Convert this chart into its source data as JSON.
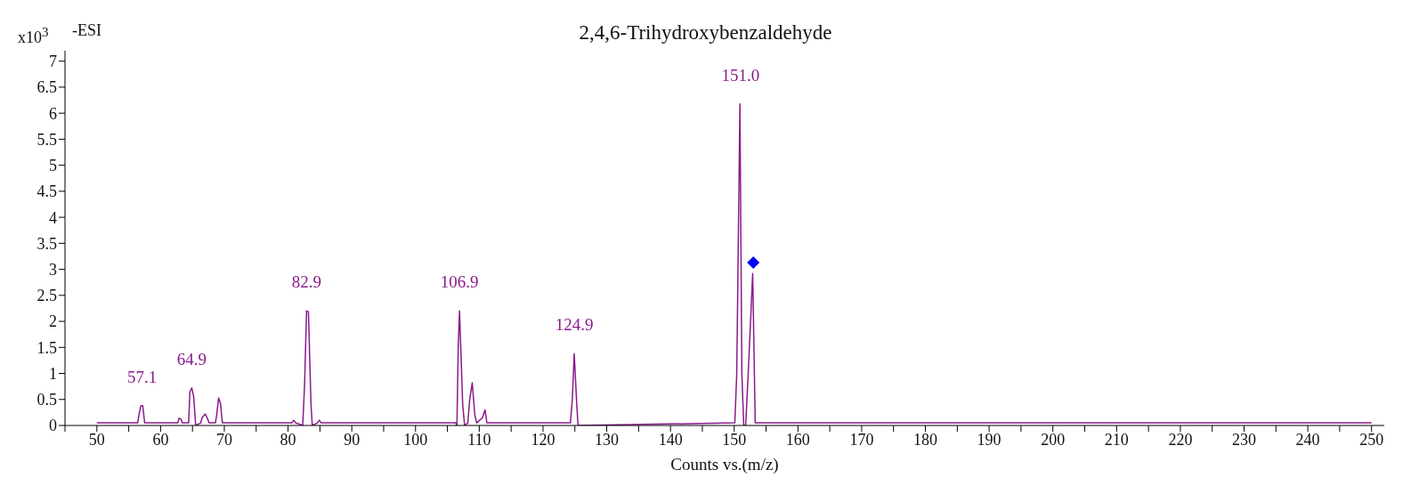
{
  "chart_data": {
    "type": "line",
    "title": "2,4,6-Trihydroxybenzaldehyde",
    "xlabel": "Counts vs.(m/z)",
    "ylabel": "x10$^{3}$",
    "annotations": [
      "-ESI",
      {
        "text": "57.1",
        "x": 57.1,
        "y": 0.38
      },
      {
        "text": "64.9",
        "x": 64.9,
        "y": 0.72
      },
      {
        "text": "82.9",
        "x": 82.9,
        "y": 2.2
      },
      {
        "text": "106.9",
        "x": 106.9,
        "y": 2.2
      },
      {
        "text": "124.9",
        "x": 124.9,
        "y": 1.38
      },
      {
        "text": "151.0",
        "x": 151.0,
        "y": 6.18
      }
    ],
    "series": [
      {
        "color": "#8b1a8b",
        "x": [
          50,
          56.4,
          56.6,
          56.9,
          57.2,
          57.5,
          62.7,
          62.9,
          63.2,
          63.4,
          64.4,
          64.6,
          64.9,
          65.2,
          65.5,
          66.3,
          66.5,
          67.0,
          67.3,
          67.6,
          68.6,
          68.8,
          69.1,
          69.4,
          69.7,
          80.6,
          80.9,
          81.2,
          82.3,
          82.6,
          82.9,
          83.2,
          83.6,
          83.8,
          84.6,
          84.9,
          85.2,
          106.3,
          106.5,
          106.7,
          106.9,
          107.4,
          107.7,
          108.2,
          108.5,
          108.9,
          109.3,
          109.6,
          110.5,
          110.9,
          111.2,
          124.3,
          124.6,
          124.9,
          125.3,
          125.5,
          150.1,
          150.4,
          150.9,
          151.2,
          151.5,
          151.8,
          152.2,
          152.9,
          153.3,
          250
        ],
        "values": [
          0.05,
          0.05,
          0.2,
          0.38,
          0.38,
          0.05,
          0.05,
          0.14,
          0.12,
          0.05,
          0.05,
          0.65,
          0.72,
          0.55,
          0.0,
          0.05,
          0.15,
          0.22,
          0.15,
          0.05,
          0.05,
          0.2,
          0.53,
          0.42,
          0.05,
          0.05,
          0.1,
          0.05,
          0.0,
          0.8,
          2.2,
          2.18,
          0.4,
          0.0,
          0.05,
          0.1,
          0.05,
          0.05,
          0.0,
          1.5,
          2.2,
          0.4,
          0.0,
          0.05,
          0.5,
          0.82,
          0.2,
          0.05,
          0.15,
          0.3,
          0.05,
          0.05,
          0.5,
          1.38,
          0.4,
          0.0,
          0.05,
          1.0,
          6.18,
          1.0,
          0.0,
          0.0,
          1.0,
          2.92,
          0.05,
          0.05
        ]
      },
      {
        "type": "scatter",
        "color": "#0000ff",
        "marker": "diamond",
        "x": [
          153.0
        ],
        "values": [
          3.13
        ]
      }
    ],
    "marker": "none",
    "line_style": "solid",
    "grid": false,
    "xlim": [
      45,
      252
    ],
    "xticks": [
      {
        "value": 45,
        "label": null
      },
      50,
      {
        "value": 55,
        "label": null
      },
      60,
      {
        "value": 65,
        "label": null
      },
      70,
      {
        "value": 75,
        "label": null
      },
      80,
      {
        "value": 85,
        "label": null
      },
      90,
      {
        "value": 95,
        "label": null
      },
      100,
      {
        "value": 105,
        "label": null
      },
      110,
      {
        "value": 115,
        "label": null
      },
      120,
      {
        "value": 125,
        "label": null
      },
      130,
      {
        "value": 135,
        "label": null
      },
      140,
      {
        "value": 145,
        "label": null
      },
      150,
      {
        "value": 155,
        "label": null
      },
      160,
      {
        "value": 165,
        "label": null
      },
      170,
      {
        "value": 175,
        "label": null
      },
      180,
      {
        "value": 185,
        "label": null
      },
      190,
      {
        "value": 195,
        "label": null
      },
      200,
      {
        "value": 205,
        "label": null
      },
      210,
      {
        "value": 215,
        "label": null
      },
      220,
      {
        "value": 225,
        "label": null
      },
      230,
      {
        "value": 235,
        "label": null
      },
      240,
      {
        "value": 245,
        "label": null
      },
      250
    ],
    "ylim": [
      0,
      7.2
    ],
    "yticks": [
      0,
      0.5,
      1,
      1.5,
      2,
      2.5,
      3,
      3.5,
      4,
      4.5,
      5,
      5.5,
      6,
      6.5,
      7
    ]
  }
}
